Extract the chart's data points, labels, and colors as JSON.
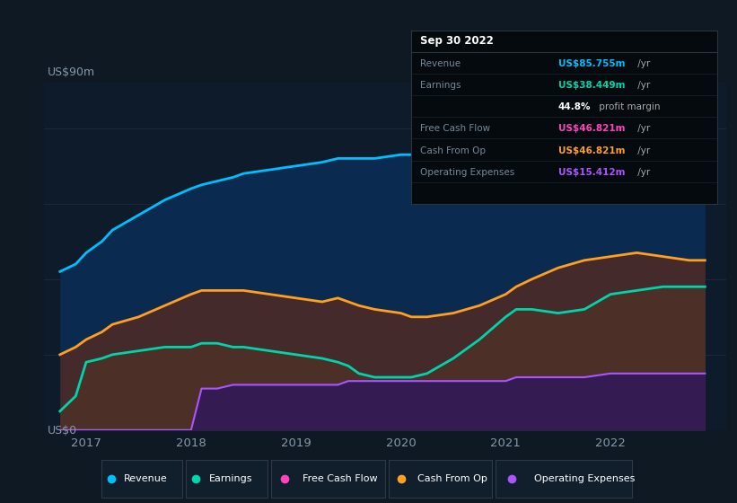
{
  "bg_color": "#0f1923",
  "chart_bg": "#0d1b2a",
  "title_label": "US$90m",
  "bottom_label": "US$0",
  "x_years": [
    2016.75,
    2016.9,
    2017.0,
    2017.15,
    2017.25,
    2017.5,
    2017.75,
    2018.0,
    2018.1,
    2018.25,
    2018.4,
    2018.5,
    2018.75,
    2019.0,
    2019.25,
    2019.4,
    2019.5,
    2019.6,
    2019.75,
    2020.0,
    2020.1,
    2020.25,
    2020.5,
    2020.75,
    2021.0,
    2021.1,
    2021.25,
    2021.5,
    2021.75,
    2022.0,
    2022.25,
    2022.5,
    2022.75,
    2022.9
  ],
  "revenue": [
    42,
    44,
    47,
    50,
    53,
    57,
    61,
    64,
    65,
    66,
    67,
    68,
    69,
    70,
    71,
    72,
    72,
    72,
    72,
    73,
    73,
    72,
    72,
    73,
    77,
    76,
    75,
    76,
    77,
    80,
    83,
    86,
    87,
    88
  ],
  "earnings": [
    5,
    9,
    18,
    19,
    20,
    21,
    22,
    22,
    23,
    23,
    22,
    22,
    21,
    20,
    19,
    18,
    17,
    15,
    14,
    14,
    14,
    15,
    19,
    24,
    30,
    32,
    32,
    31,
    32,
    36,
    37,
    38,
    38,
    38
  ],
  "cash_from_op": [
    20,
    22,
    24,
    26,
    28,
    30,
    33,
    36,
    37,
    37,
    37,
    37,
    36,
    35,
    34,
    35,
    34,
    33,
    32,
    31,
    30,
    30,
    31,
    33,
    36,
    38,
    40,
    43,
    45,
    46,
    47,
    46,
    45,
    45
  ],
  "operating_expenses": [
    0,
    0,
    0,
    0,
    0,
    0,
    0,
    0,
    11,
    11,
    12,
    12,
    12,
    12,
    12,
    12,
    13,
    13,
    13,
    13,
    13,
    13,
    13,
    13,
    13,
    14,
    14,
    14,
    14,
    15,
    15,
    15,
    15,
    15
  ],
  "revenue_color": "#00bfff",
  "earnings_color": "#00d4aa",
  "cash_from_op_color": "#ffa020",
  "operating_expenses_color": "#aa55ff",
  "free_cash_flow_color": "#ff44bb",
  "tooltip_date": "Sep 30 2022",
  "tooltip_revenue_label": "Revenue",
  "tooltip_revenue_value": "US$85.755m",
  "tooltip_revenue_unit": " /yr",
  "tooltip_revenue_color": "#00bfff",
  "tooltip_earnings_label": "Earnings",
  "tooltip_earnings_value": "US$38.449m",
  "tooltip_earnings_unit": " /yr",
  "tooltip_earnings_color": "#00d4aa",
  "tooltip_margin": "44.8%",
  "tooltip_margin_suffix": " profit margin",
  "tooltip_fcf_label": "Free Cash Flow",
  "tooltip_fcf_value": "US$46.821m",
  "tooltip_fcf_unit": " /yr",
  "tooltip_fcf_color": "#ff44bb",
  "tooltip_cashop_label": "Cash From Op",
  "tooltip_cashop_value": "US$46.821m",
  "tooltip_cashop_unit": " /yr",
  "tooltip_cashop_color": "#ffa020",
  "tooltip_opex_label": "Operating Expenses",
  "tooltip_opex_value": "US$15.412m",
  "tooltip_opex_unit": " /yr",
  "tooltip_opex_color": "#aa55ff",
  "xlim_start": 2016.6,
  "xlim_end": 2023.1,
  "ylim_bottom": 0,
  "ylim_top": 92,
  "xtick_years": [
    2017,
    2018,
    2019,
    2020,
    2021,
    2022
  ],
  "grid_color": "#1a2a3a",
  "legend_bg": "#111e2c",
  "legend_border": "#2a3a4a"
}
